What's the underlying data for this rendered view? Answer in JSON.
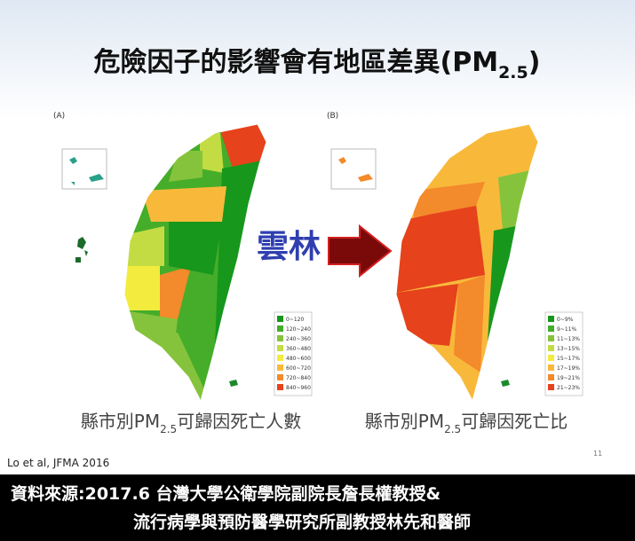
{
  "title": {
    "main": "危險因子的影響會有地區差異(PM",
    "sub": "2.5",
    "close": ")"
  },
  "maps": [
    {
      "label": "(A)",
      "caption": {
        "main": "縣市別PM",
        "sub": "2.5",
        "rest": "可歸因死亡人數"
      },
      "legend": [
        {
          "label": "0~120",
          "color": "#17971c"
        },
        {
          "label": "120~240",
          "color": "#45ad29"
        },
        {
          "label": "240~360",
          "color": "#86c33c"
        },
        {
          "label": "360~480",
          "color": "#c3dc44"
        },
        {
          "label": "480~600",
          "color": "#f3ec3e"
        },
        {
          "label": "600~720",
          "color": "#f8b93b"
        },
        {
          "label": "720~840",
          "color": "#f38a2b"
        },
        {
          "label": "840~960",
          "color": "#e6421c"
        }
      ]
    },
    {
      "label": "(B)",
      "caption": {
        "main": "縣市別PM",
        "sub": "2.5",
        "rest": "可歸因死亡比"
      },
      "legend": [
        {
          "label": "0~9%",
          "color": "#17971c"
        },
        {
          "label": "9~11%",
          "color": "#45ad29"
        },
        {
          "label": "11~13%",
          "color": "#86c33c"
        },
        {
          "label": "13~15%",
          "color": "#c3dc44"
        },
        {
          "label": "15~17%",
          "color": "#f3ec3e"
        },
        {
          "label": "17~19%",
          "color": "#f8b93b"
        },
        {
          "label": "19~21%",
          "color": "#f38a2b"
        },
        {
          "label": "21~23%",
          "color": "#e6421c"
        }
      ]
    }
  ],
  "arrow_label": "雲林",
  "citation": "Lo et al, JFMA 2016",
  "page_number": "11",
  "source": [
    "資料來源:2017.6 台灣大學公衛學院副院長詹長權教授&",
    "流行病學與預防醫學研究所副教授林先和醫師"
  ]
}
